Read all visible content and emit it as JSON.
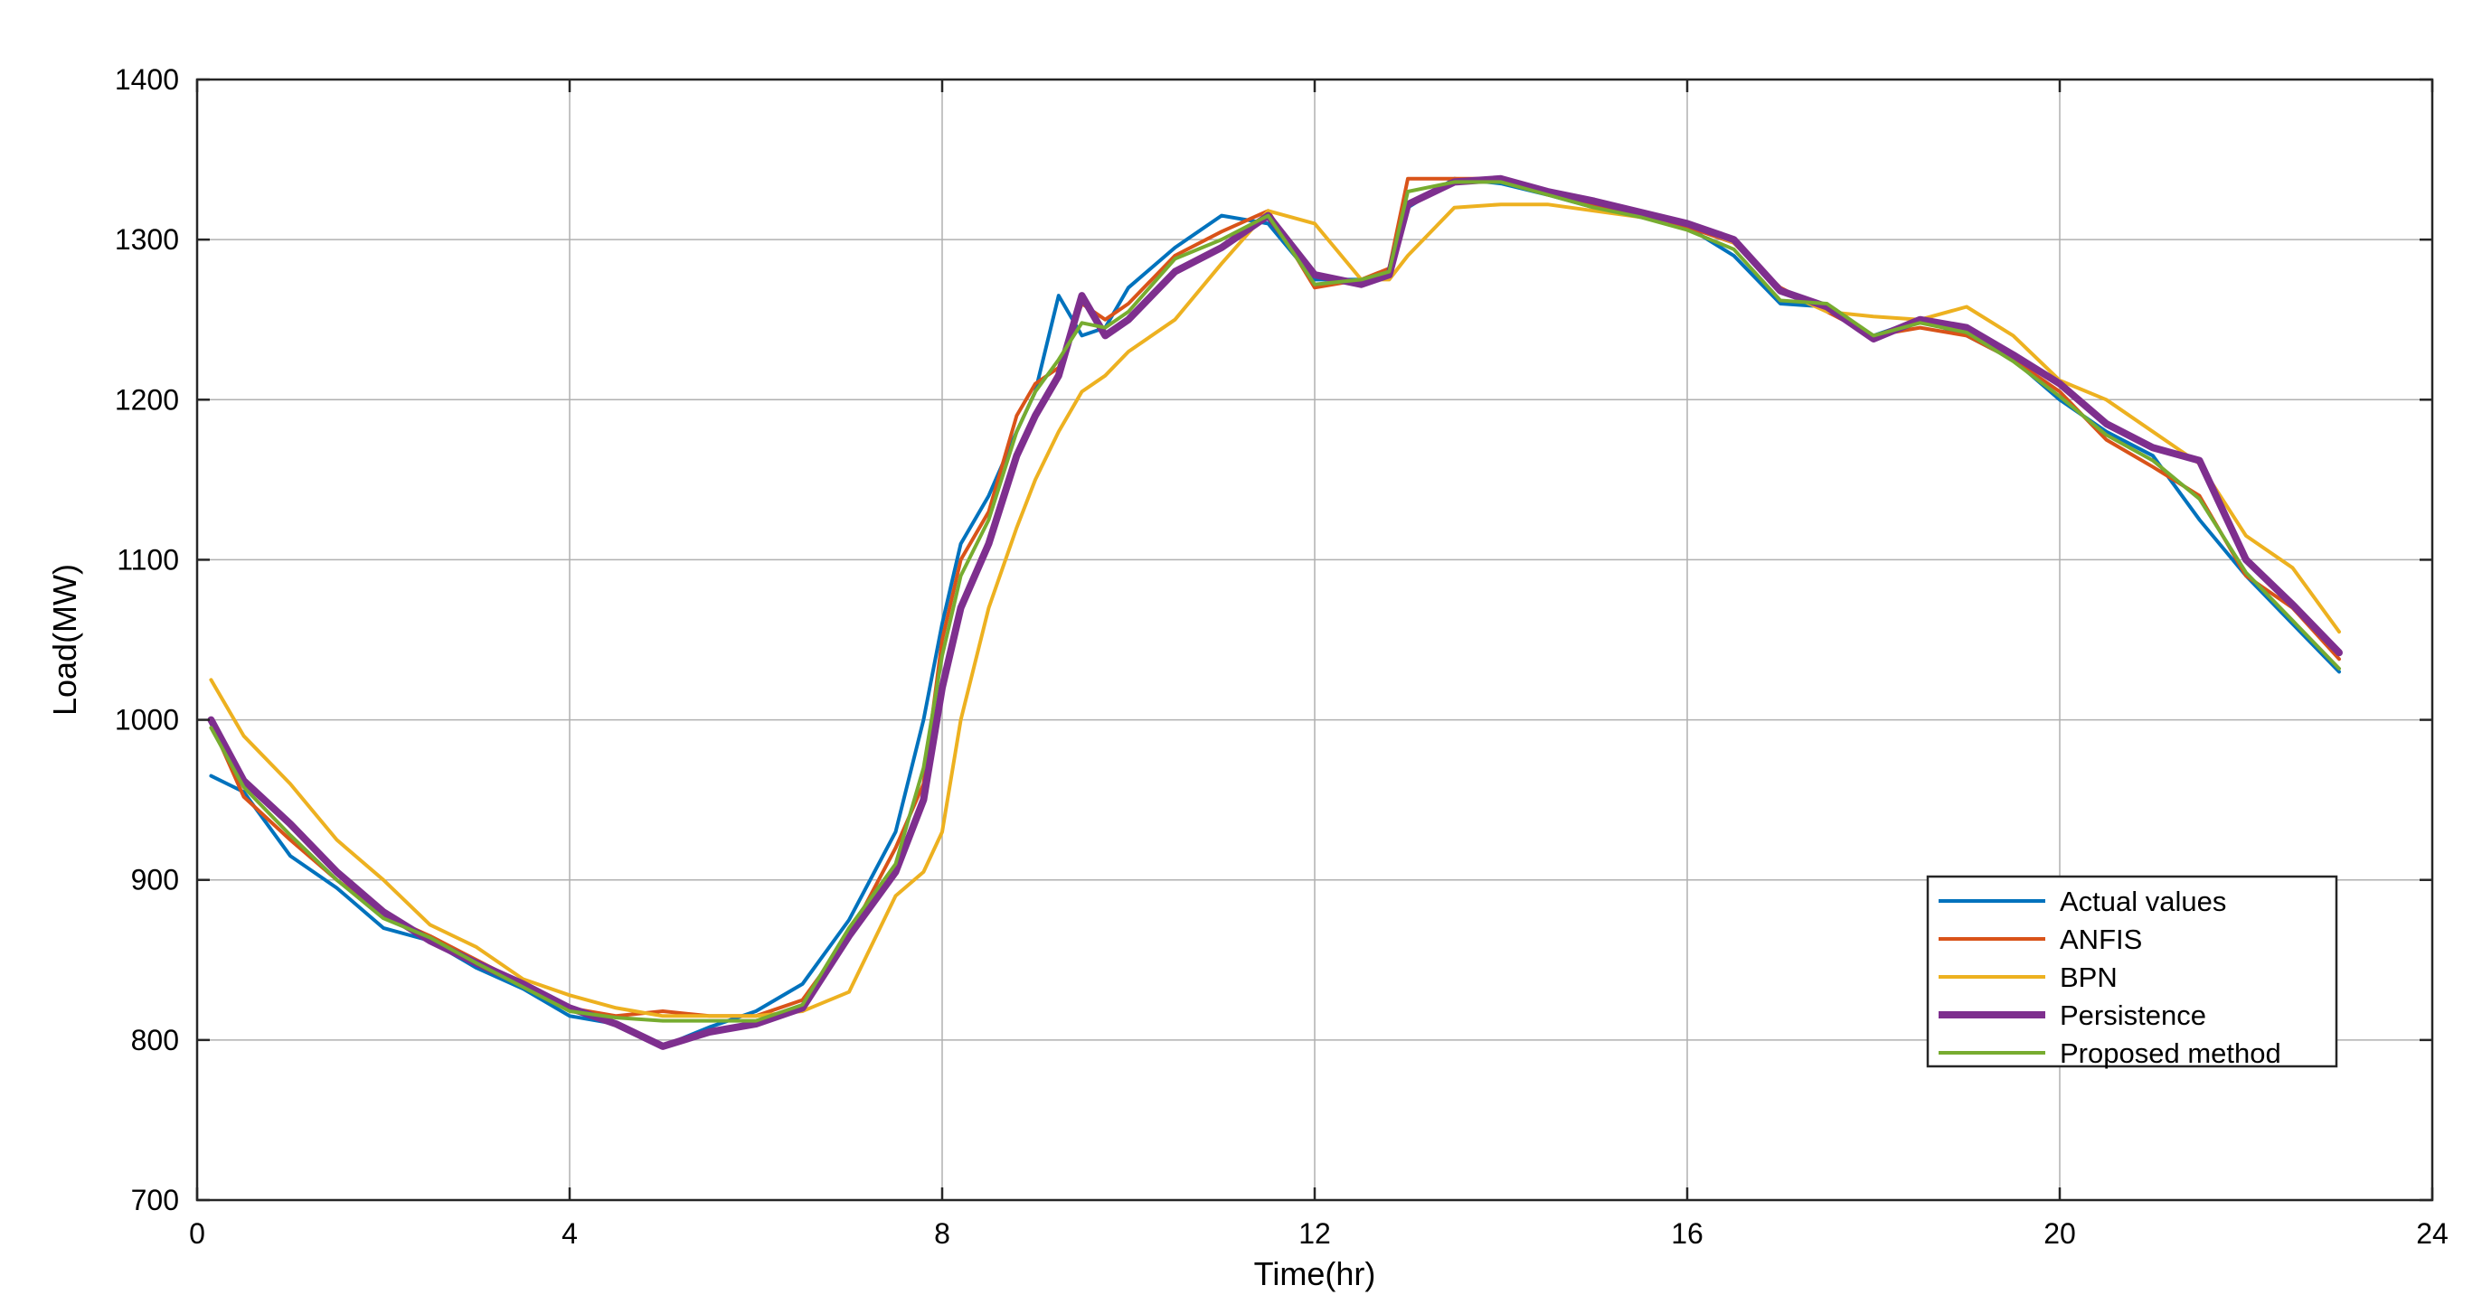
{
  "chart_data": {
    "type": "line",
    "title": "",
    "xlabel": "Time(hr)",
    "ylabel": "Load(MW)",
    "xlim": [
      0,
      24
    ],
    "ylim": [
      700,
      1400
    ],
    "xticks": [
      "0",
      "4",
      "8",
      "12",
      "16",
      "20",
      "24"
    ],
    "yticks": [
      "700",
      "800",
      "900",
      "1000",
      "1100",
      "1200",
      "1300",
      "1400"
    ],
    "grid": true,
    "legend_position": "lower-right",
    "x": [
      0.15,
      0.5,
      1,
      1.5,
      2,
      2.5,
      3,
      3.5,
      4,
      4.5,
      5,
      5.5,
      6,
      6.5,
      7,
      7.5,
      7.8,
      8,
      8.2,
      8.5,
      8.8,
      9,
      9.25,
      9.5,
      9.75,
      10,
      10.5,
      11,
      11.5,
      12,
      12.5,
      12.8,
      13,
      13.5,
      14,
      14.5,
      15,
      15.5,
      16,
      16.5,
      17,
      17.5,
      18,
      18.5,
      19,
      19.5,
      20,
      20.5,
      21,
      21.5,
      22,
      22.5,
      23
    ],
    "series": [
      {
        "name": "Actual values",
        "color": "#0072BD",
        "width": 4,
        "values": [
          965,
          955,
          915,
          895,
          870,
          862,
          845,
          832,
          815,
          810,
          796,
          808,
          818,
          835,
          875,
          930,
          1000,
          1060,
          1110,
          1140,
          1180,
          1205,
          1265,
          1240,
          1245,
          1270,
          1295,
          1315,
          1310,
          1275,
          1275,
          1280,
          1320,
          1338,
          1335,
          1328,
          1320,
          1314,
          1308,
          1290,
          1260,
          1258,
          1240,
          1250,
          1240,
          1225,
          1200,
          1180,
          1165,
          1125,
          1090,
          1060,
          1030
        ]
      },
      {
        "name": "ANFIS",
        "color": "#D95319",
        "width": 4,
        "values": [
          998,
          952,
          925,
          900,
          878,
          865,
          850,
          835,
          820,
          815,
          818,
          815,
          815,
          825,
          865,
          920,
          960,
          1050,
          1100,
          1130,
          1190,
          1210,
          1220,
          1260,
          1250,
          1260,
          1290,
          1305,
          1318,
          1270,
          1275,
          1282,
          1338,
          1338,
          1338,
          1328,
          1322,
          1315,
          1308,
          1298,
          1270,
          1255,
          1240,
          1245,
          1240,
          1225,
          1205,
          1175,
          1158,
          1140,
          1090,
          1070,
          1038
        ]
      },
      {
        "name": "BPN",
        "color": "#EDB120",
        "width": 4,
        "values": [
          1025,
          990,
          960,
          925,
          900,
          872,
          858,
          838,
          828,
          820,
          815,
          815,
          815,
          818,
          830,
          890,
          905,
          930,
          1000,
          1070,
          1120,
          1150,
          1180,
          1205,
          1215,
          1230,
          1250,
          1285,
          1318,
          1310,
          1275,
          1275,
          1290,
          1320,
          1322,
          1322,
          1318,
          1314,
          1310,
          1298,
          1268,
          1255,
          1252,
          1250,
          1258,
          1240,
          1212,
          1200,
          1180,
          1160,
          1115,
          1095,
          1055
        ]
      },
      {
        "name": "Persistence",
        "color": "#7E2F8E",
        "width": 8,
        "values": [
          1000,
          962,
          935,
          905,
          880,
          862,
          848,
          835,
          820,
          810,
          796,
          805,
          810,
          820,
          865,
          905,
          950,
          1020,
          1070,
          1110,
          1165,
          1190,
          1215,
          1265,
          1240,
          1250,
          1280,
          1295,
          1315,
          1278,
          1272,
          1278,
          1322,
          1336,
          1338,
          1330,
          1324,
          1317,
          1310,
          1300,
          1268,
          1258,
          1238,
          1250,
          1245,
          1228,
          1210,
          1185,
          1170,
          1162,
          1100,
          1072,
          1042
        ]
      },
      {
        "name": "Proposed method",
        "color": "#77AC30",
        "width": 4,
        "values": [
          995,
          958,
          928,
          900,
          876,
          864,
          848,
          833,
          818,
          814,
          812,
          812,
          812,
          822,
          870,
          910,
          970,
          1040,
          1090,
          1125,
          1180,
          1205,
          1225,
          1248,
          1245,
          1255,
          1288,
          1300,
          1315,
          1272,
          1275,
          1280,
          1330,
          1336,
          1336,
          1328,
          1320,
          1314,
          1306,
          1294,
          1262,
          1260,
          1240,
          1248,
          1242,
          1224,
          1202,
          1178,
          1162,
          1138,
          1092,
          1062,
          1032
        ]
      }
    ]
  }
}
